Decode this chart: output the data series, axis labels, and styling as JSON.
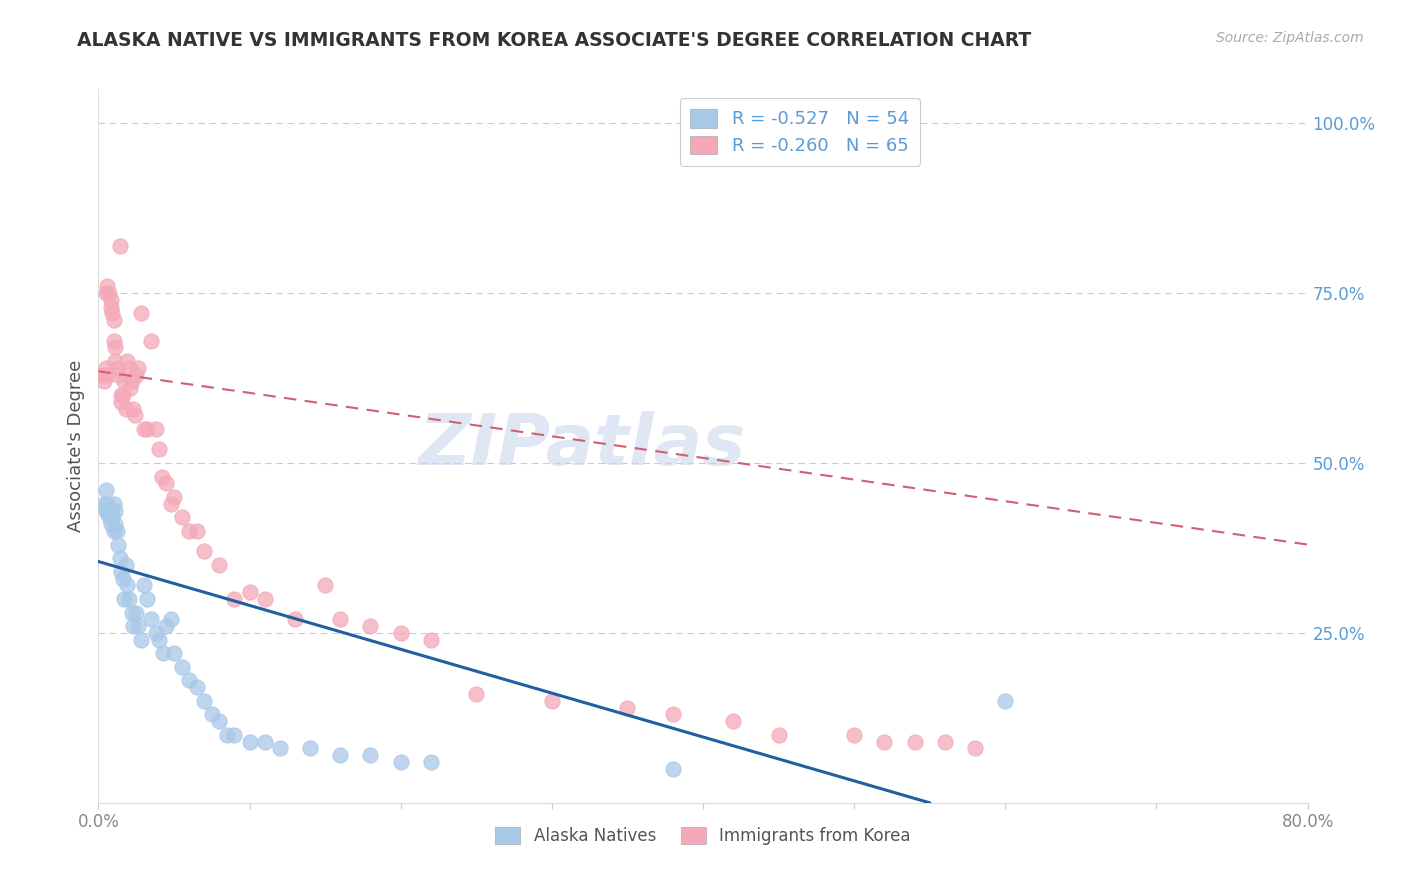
{
  "title": "ALASKA NATIVE VS IMMIGRANTS FROM KOREA ASSOCIATE'S DEGREE CORRELATION CHART",
  "source_text": "Source: ZipAtlas.com",
  "ylabel": "Associate's Degree",
  "xlim": [
    0.0,
    0.8
  ],
  "ylim": [
    0.0,
    1.05
  ],
  "legend_entry1": "R = -0.527   N = 54",
  "legend_entry2": "R = -0.260   N = 65",
  "blue_scatter_color": "#a8c8e8",
  "pink_scatter_color": "#f4a8b8",
  "blue_line_color": "#2060a0",
  "pink_line_color": "#d06070",
  "right_tick_color": "#5b9bd5",
  "watermark_text": "ZIPatlas",
  "alaska_x": [
    0.004,
    0.005,
    0.005,
    0.006,
    0.006,
    0.007,
    0.008,
    0.008,
    0.009,
    0.01,
    0.01,
    0.011,
    0.011,
    0.012,
    0.013,
    0.014,
    0.015,
    0.016,
    0.017,
    0.018,
    0.019,
    0.02,
    0.022,
    0.023,
    0.025,
    0.026,
    0.028,
    0.03,
    0.032,
    0.035,
    0.038,
    0.04,
    0.043,
    0.045,
    0.048,
    0.05,
    0.055,
    0.06,
    0.065,
    0.07,
    0.075,
    0.08,
    0.085,
    0.09,
    0.1,
    0.11,
    0.12,
    0.14,
    0.16,
    0.18,
    0.2,
    0.22,
    0.38,
    0.6
  ],
  "alaska_y": [
    0.44,
    0.43,
    0.46,
    0.44,
    0.43,
    0.42,
    0.43,
    0.41,
    0.42,
    0.44,
    0.4,
    0.43,
    0.41,
    0.4,
    0.38,
    0.36,
    0.34,
    0.33,
    0.3,
    0.35,
    0.32,
    0.3,
    0.28,
    0.26,
    0.28,
    0.26,
    0.24,
    0.32,
    0.3,
    0.27,
    0.25,
    0.24,
    0.22,
    0.26,
    0.27,
    0.22,
    0.2,
    0.18,
    0.17,
    0.15,
    0.13,
    0.12,
    0.1,
    0.1,
    0.09,
    0.09,
    0.08,
    0.08,
    0.07,
    0.07,
    0.06,
    0.06,
    0.05,
    0.15
  ],
  "korea_x": [
    0.003,
    0.004,
    0.005,
    0.005,
    0.006,
    0.006,
    0.007,
    0.008,
    0.008,
    0.009,
    0.01,
    0.01,
    0.011,
    0.011,
    0.012,
    0.013,
    0.014,
    0.015,
    0.015,
    0.016,
    0.017,
    0.018,
    0.019,
    0.02,
    0.021,
    0.022,
    0.023,
    0.024,
    0.025,
    0.026,
    0.028,
    0.03,
    0.032,
    0.035,
    0.038,
    0.04,
    0.042,
    0.045,
    0.048,
    0.05,
    0.055,
    0.06,
    0.065,
    0.07,
    0.08,
    0.09,
    0.1,
    0.11,
    0.13,
    0.15,
    0.16,
    0.18,
    0.2,
    0.22,
    0.25,
    0.3,
    0.35,
    0.38,
    0.42,
    0.45,
    0.5,
    0.52,
    0.54,
    0.56,
    0.58
  ],
  "korea_y": [
    0.63,
    0.62,
    0.64,
    0.75,
    0.76,
    0.63,
    0.75,
    0.74,
    0.73,
    0.72,
    0.71,
    0.68,
    0.67,
    0.65,
    0.64,
    0.63,
    0.82,
    0.6,
    0.59,
    0.6,
    0.62,
    0.58,
    0.65,
    0.64,
    0.61,
    0.62,
    0.58,
    0.57,
    0.63,
    0.64,
    0.72,
    0.55,
    0.55,
    0.68,
    0.55,
    0.52,
    0.48,
    0.47,
    0.44,
    0.45,
    0.42,
    0.4,
    0.4,
    0.37,
    0.35,
    0.3,
    0.31,
    0.3,
    0.27,
    0.32,
    0.27,
    0.26,
    0.25,
    0.24,
    0.16,
    0.15,
    0.14,
    0.13,
    0.12,
    0.1,
    0.1,
    0.09,
    0.09,
    0.09,
    0.08
  ],
  "alaska_trend_x": [
    0.0,
    0.55
  ],
  "alaska_trend_y": [
    0.355,
    0.0
  ],
  "korea_trend_x": [
    0.0,
    0.8
  ],
  "korea_trend_y": [
    0.635,
    0.38
  ]
}
